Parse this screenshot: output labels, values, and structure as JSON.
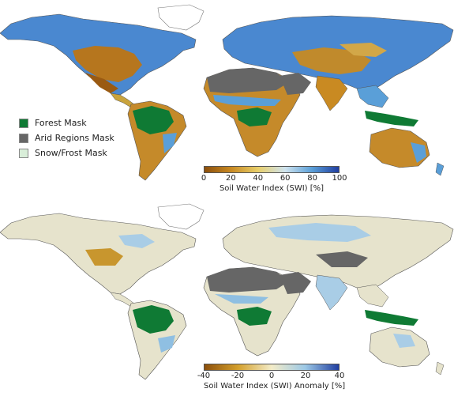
{
  "legend": {
    "items": [
      {
        "label": "Forest Mask",
        "color": "#0f7a34"
      },
      {
        "label": "Arid Regions Mask",
        "color": "#666666"
      },
      {
        "label": "Snow/Frost Mask",
        "color": "#d9eed9"
      }
    ]
  },
  "colorbar_swi": {
    "title": "Soil Water Index (SWI) [%]",
    "ticks": [
      "0",
      "20",
      "40",
      "60",
      "80",
      "100"
    ],
    "colors": [
      "#8c4f0c",
      "#c98a22",
      "#e8cf6b",
      "#cfe3ee",
      "#5a9fd8",
      "#203ea0"
    ]
  },
  "colorbar_anomaly": {
    "title": "Soil Water Index (SWI) Anomaly [%]",
    "ticks": [
      "-40",
      "-20",
      "0",
      "20",
      "40"
    ],
    "colors": [
      "#8c4f0c",
      "#d4a02c",
      "#f3ecc8",
      "#9cc8e6",
      "#203ea0"
    ]
  }
}
